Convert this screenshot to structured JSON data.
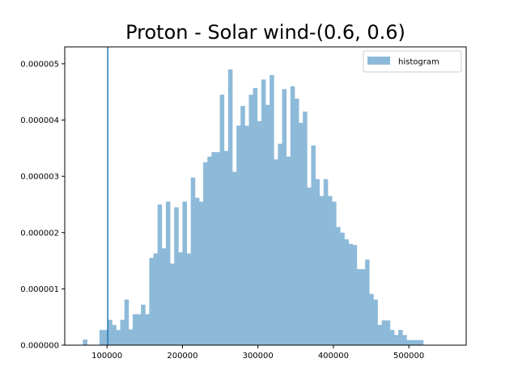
{
  "chart_data": {
    "type": "bar",
    "title": "Proton - Solar wind-(0.6, 0.6)",
    "xlabel": "",
    "ylabel": "",
    "xlim": [
      44000,
      576000
    ],
    "ylim": [
      0,
      5.3e-06
    ],
    "x_ticks": [
      100000,
      200000,
      300000,
      400000,
      500000
    ],
    "x_tick_labels": [
      "100000",
      "200000",
      "300000",
      "400000",
      "500000"
    ],
    "y_ticks": [
      0,
      1e-06,
      2e-06,
      3e-06,
      4e-06,
      5e-06
    ],
    "y_tick_labels": [
      "0.000000",
      "0.000001",
      "0.000002",
      "0.000003",
      "0.000004",
      "0.000005"
    ],
    "grid": false,
    "legend": {
      "placement": "top-right",
      "entries": [
        "histogram"
      ]
    },
    "bar_color": "#8ebad9",
    "vline": {
      "x": 101000,
      "color": "#1f77b4"
    },
    "series": [
      {
        "name": "histogram",
        "bin_start": 68000,
        "bin_width": 5500,
        "values": [
          1e-07,
          0,
          0,
          0,
          2.7e-07,
          2.7e-07,
          4.5e-07,
          3.6e-07,
          2.7e-07,
          4.5e-07,
          8.1e-07,
          2.8e-07,
          5.5e-07,
          5.5e-07,
          7.2e-07,
          5.5e-07,
          1.55e-06,
          1.63e-06,
          2.5e-06,
          1.72e-06,
          2.55e-06,
          1.45e-06,
          2.45e-06,
          1.65e-06,
          2.55e-06,
          1.63e-06,
          2.98e-06,
          2.62e-06,
          2.55e-06,
          3.25e-06,
          3.35e-06,
          3.43e-06,
          3.43e-06,
          4.45e-06,
          3.45e-06,
          4.9e-06,
          3.08e-06,
          3.9e-06,
          4.25e-06,
          3.9e-06,
          4.45e-06,
          4.57e-06,
          3.98e-06,
          4.72e-06,
          4.27e-06,
          4.8e-06,
          3.3e-06,
          3.58e-06,
          4.55e-06,
          3.35e-06,
          4.6e-06,
          4.38e-06,
          3.95e-06,
          4.15e-06,
          2.8e-06,
          3.55e-06,
          2.95e-06,
          2.65e-06,
          2.95e-06,
          2.65e-06,
          2.55e-06,
          2.1e-06,
          2e-06,
          1.88e-06,
          1.8e-06,
          1.78e-06,
          1.35e-06,
          1.35e-06,
          1.52e-06,
          9.1e-07,
          8.1e-07,
          3.6e-07,
          4.4e-07,
          4.4e-07,
          2.7e-07,
          1.8e-07,
          2.7e-07,
          1.8e-07,
          9e-08,
          9e-08,
          9e-08,
          9e-08,
          0,
          0
        ]
      }
    ]
  }
}
